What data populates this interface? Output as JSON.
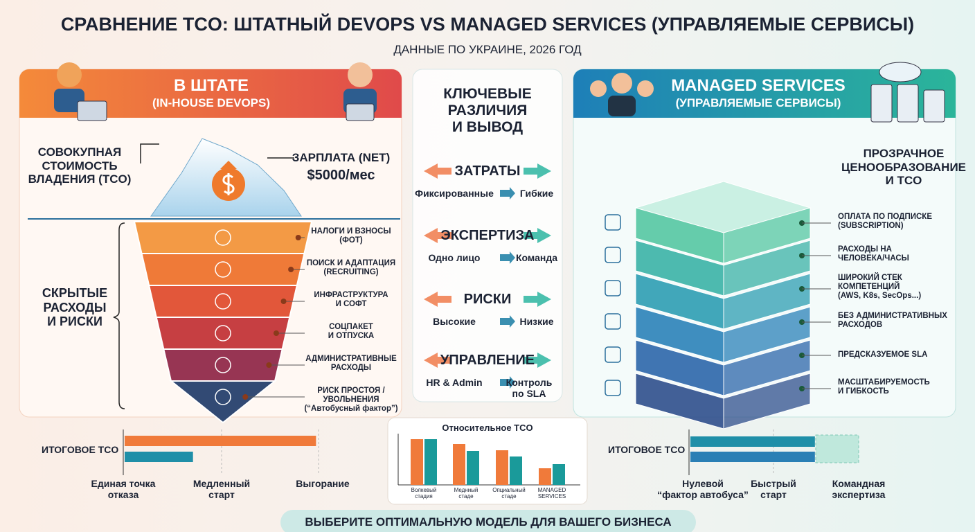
{
  "header": {
    "title": "СРАВНЕНИЕ TCO: ШТАТНЫЙ DEVOPS VS MANAGED SERVICES (УПРАВЛЯЕМЫЕ СЕРВИСЫ)",
    "subtitle": "ДАННЫЕ ПО УКРАИНЕ, 2026 ГОД"
  },
  "in_house": {
    "title": "В ШТАТЕ",
    "subtitle": "(IN-HOUSE DEVOPS)",
    "tco_label": "СОВОКУПНАЯ\nСТОИМОСТЬ\nВЛАДЕНИЯ (TCO)",
    "salary_label": "ЗАРПЛАТА (NET)",
    "salary_value": "$5000/мес",
    "hidden_label": "СКРЫТЫЕ\nРАСХОДЫ\nИ РИСКИ",
    "layers": [
      "НАЛОГИ И ВЗНОСЫ\n(ФОТ)",
      "ПОИСК И АДАПТАЦИЯ\n(RECRUITING)",
      "ИНФРАСТРУКТУРА\nИ СОФТ",
      "СОЦПАКЕТ\nИ ОТПУСКА",
      "АДМИНИСТРАТИВНЫЕ\nРАСХОДЫ",
      "РИСК ПРОСТОЯ / УВОЛЬНЕНИЯ\n(“Автобусный фактор”)"
    ],
    "tco_bars": {
      "label": "ИТОГОВОЕ TCO",
      "xlim": [
        0,
        100
      ],
      "values": [
        98,
        35
      ],
      "colors": [
        "#f07a3a",
        "#1f8fa8"
      ],
      "notes": [
        "Единая точка\nотказа",
        "Медленный\nстарт",
        "Выгорание"
      ]
    }
  },
  "differences": {
    "title": "КЛЮЧЕВЫЕ\nРАЗЛИЧИЯ\nИ ВЫВОД",
    "items": [
      {
        "name": "ЗАТРАТЫ",
        "from": "Фиксированные",
        "to": "Гибкие"
      },
      {
        "name": "ЭКСПЕРТИЗА",
        "from": "Одно лицо",
        "to": "Команда"
      },
      {
        "name": "РИСКИ",
        "from": "Высокие",
        "to": "Низкие"
      },
      {
        "name": "УПРАВЛЕНИЕ",
        "from": "HR & Admin",
        "to": "Контроль\nпо SLA"
      }
    ]
  },
  "relative_tco": {
    "type": "bar",
    "title": "Относительное TCO",
    "categories": [
      "Волкевый\nстадия",
      "Медниый\nстаде",
      "Опциальный\nстаде",
      "MANAGED\nSERVICES"
    ],
    "series": [
      {
        "color": "#f07a3a",
        "values": [
          66,
          59,
          50,
          24
        ]
      },
      {
        "color": "#1a9a9a",
        "values": [
          66,
          49,
          41,
          30
        ]
      }
    ],
    "ylim": [
      0,
      70
    ]
  },
  "managed": {
    "title": "MANAGED SERVICES",
    "subtitle": "(УПРАВЛЯЕМЫЕ СЕРВИСЫ)",
    "pricing_label": "ПРОЗРАЧНОЕ\nЦЕНООБРАЗОВАНИЕ\nИ TCO",
    "layers": [
      "ОПЛАТА ПО ПОДПИСКЕ\n(SUBSCRIPTION)",
      "РАСХОДЫ НА\nЧЕЛОВЕКА/ЧАСЫ",
      "ШИРОКИЙ СТЕК\nКОМПЕТЕНЦИЙ\n(AWS, K8s, SecOps...)",
      "БЕЗ АДМИНИСТРАТИВНЫХ\nРАСХОДОВ",
      "ПРЕДСКАЗУЕМОЕ SLA",
      "МАСШТАБИРУЕМОСТЬ\nИ ГИБКОСТЬ"
    ],
    "tco_bars": {
      "label": "ИТОГОВОЕ TCO",
      "xlim": [
        0,
        100
      ],
      "values": [
        74,
        74
      ],
      "colors": [
        "#1f8fa8",
        "#2a7fb5"
      ],
      "notes": [
        "Нулевой\n“фактор автобуса”",
        "Быстрый\nстарт",
        "Командная\nэкспертиза"
      ]
    }
  },
  "footer": {
    "text": "ВЫБЕРИТЕ ОПТИМАЛЬНУЮ МОДЕЛЬ ДЛЯ ВАШЕГО БИЗНЕСА"
  }
}
